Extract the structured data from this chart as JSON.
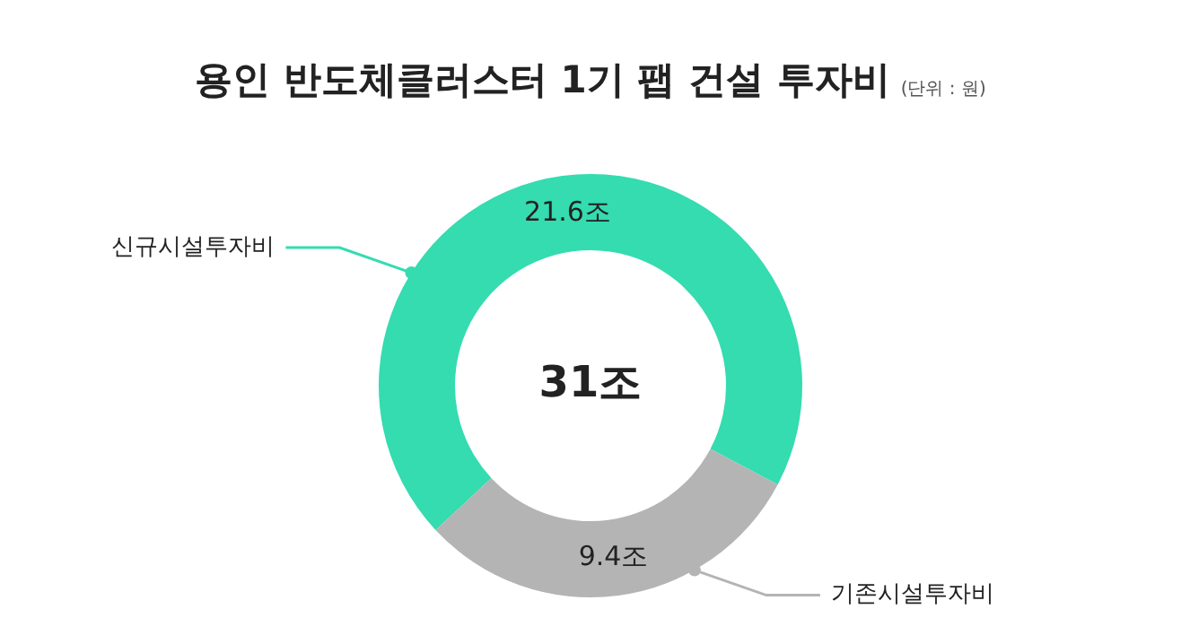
{
  "chart_data": {
    "type": "donut",
    "title": "용인 반도체클러스터 1기 팹 건설 투자비",
    "subtitle": "(단위 : 원)",
    "categories": [
      "신규시설투자비",
      "기존시설투자비"
    ],
    "values": [
      21.6,
      9.4
    ],
    "colors": [
      "#34dcb0",
      "#b4b4b4"
    ],
    "value_labels": [
      "21.6조",
      "9.4조"
    ],
    "annotations": [
      "31조"
    ],
    "legend": false
  }
}
